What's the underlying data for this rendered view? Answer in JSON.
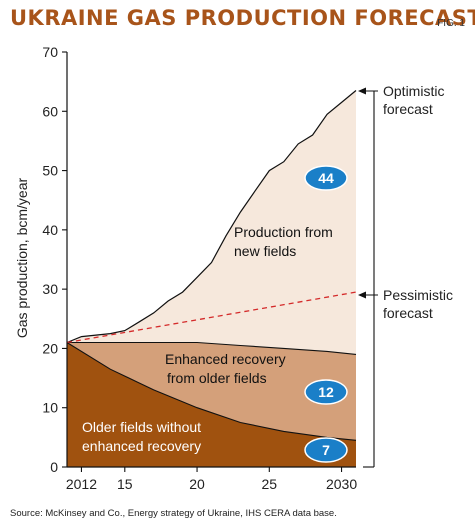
{
  "title": "UKRAINE GAS PRODUCTION FORECAST",
  "figure_label": "FIG. 1",
  "source": "Source: McKinsey and Co., Energy strategy of Ukraine, IHS CERA data base.",
  "colors": {
    "title": "#a8541a",
    "older_fields": "#a0520f",
    "enhanced_recovery": "#d4a07a",
    "new_fields": "#f6e8dc",
    "pessimistic_line": "#d42a2a",
    "badge": "#1a7fc8"
  },
  "chart_data": {
    "type": "area",
    "title": "UKRAINE GAS PRODUCTION FORECAST",
    "ylabel": "Gas production, bcm/year",
    "xlabel": "",
    "xlim": [
      2011,
      2031
    ],
    "ylim": [
      0,
      70
    ],
    "x_tick_labels": [
      {
        "x": 2012,
        "label": "2012"
      },
      {
        "x": 2015,
        "label": "15"
      },
      {
        "x": 2020,
        "label": "20"
      },
      {
        "x": 2025,
        "label": "25"
      },
      {
        "x": 2030,
        "label": "2030"
      }
    ],
    "y_ticks": [
      0,
      10,
      20,
      30,
      40,
      50,
      60,
      70
    ],
    "grid": false,
    "series": [
      {
        "name": "Older fields without enhanced recovery",
        "line1": "Older fields without",
        "line2": "enhanced recovery",
        "badge": "7",
        "x": [
          2011,
          2014,
          2017,
          2020,
          2023,
          2026,
          2029,
          2031
        ],
        "y": [
          21,
          16.5,
          13,
          10,
          7.5,
          6,
          5,
          4.5
        ]
      },
      {
        "name": "Enhanced recovery from older fields",
        "line1": "Enhanced recovery",
        "line2": "from older fields",
        "badge": "12",
        "x": [
          2011,
          2014,
          2017,
          2020,
          2023,
          2026,
          2029,
          2031
        ],
        "y": [
          21,
          21,
          21,
          21,
          20.5,
          20,
          19.5,
          19
        ]
      },
      {
        "name": "Production from new fields",
        "line1": "Production from",
        "line2": "new fields",
        "badge": "44",
        "x": [
          2011,
          2012,
          2014,
          2015,
          2016,
          2017,
          2018,
          2019,
          2020,
          2021,
          2022,
          2023,
          2024,
          2025,
          2026,
          2027,
          2028,
          2029,
          2030,
          2031
        ],
        "y": [
          21,
          22,
          22.5,
          23,
          24.5,
          26,
          28,
          29.5,
          32,
          34.5,
          39,
          43,
          46.5,
          50,
          51.5,
          54.5,
          56,
          59.5,
          61.5,
          63.5
        ]
      }
    ],
    "pessimistic": {
      "x": [
        2011,
        2031
      ],
      "y": [
        21,
        29.5
      ]
    },
    "annotations": [
      {
        "line1": "Optimistic",
        "line2": "forecast"
      },
      {
        "line1": "Pessimistic",
        "line2": "forecast"
      }
    ]
  }
}
